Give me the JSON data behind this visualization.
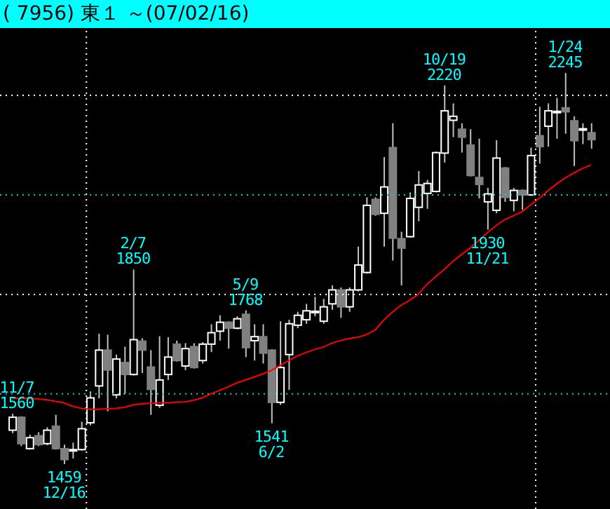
{
  "chart_data": {
    "type": "candlestick",
    "title": "( 7956) 東１ ～(07/02/16)",
    "categories": [
      null,
      null,
      null,
      null,
      null,
      null,
      null,
      null,
      null,
      null,
      null,
      null,
      null,
      null,
      null,
      null,
      null,
      null,
      null,
      null,
      null,
      null,
      null,
      null,
      null,
      null,
      null,
      null,
      null,
      null,
      null,
      null,
      null,
      null,
      null,
      null,
      null,
      null,
      null,
      null,
      null,
      null,
      null,
      null,
      null,
      null,
      null,
      null,
      null,
      null,
      null,
      null,
      null,
      null,
      null,
      null,
      null,
      null,
      null,
      null,
      null,
      null,
      null,
      null,
      null,
      null,
      null,
      null
    ],
    "ohlc": [
      [
        1527,
        1560,
        1521,
        1553
      ],
      [
        1553,
        1555,
        1495,
        1500
      ],
      [
        1490,
        1518,
        1488,
        1512
      ],
      [
        1516,
        1523,
        1495,
        1498
      ],
      [
        1500,
        1533,
        1497,
        1527
      ],
      [
        1535,
        1558,
        1488,
        1490
      ],
      [
        1490,
        1498,
        1459,
        1468
      ],
      [
        1486,
        1502,
        1470,
        1488
      ],
      [
        1488,
        1544,
        1486,
        1530
      ],
      [
        1542,
        1605,
        1537,
        1592
      ],
      [
        1616,
        1721,
        1591,
        1688
      ],
      [
        1688,
        1719,
        1565,
        1648
      ],
      [
        1598,
        1679,
        1591,
        1670
      ],
      [
        1663,
        1695,
        1600,
        1639
      ],
      [
        1639,
        1850,
        1637,
        1709
      ],
      [
        1706,
        1712,
        1642,
        1688
      ],
      [
        1654,
        1688,
        1558,
        1609
      ],
      [
        1577,
        1716,
        1572,
        1628
      ],
      [
        1639,
        1714,
        1628,
        1674
      ],
      [
        1700,
        1707,
        1665,
        1667
      ],
      [
        1656,
        1702,
        1648,
        1691
      ],
      [
        1695,
        1702,
        1651,
        1653
      ],
      [
        1667,
        1704,
        1661,
        1700
      ],
      [
        1700,
        1740,
        1684,
        1723
      ],
      [
        1726,
        1758,
        1707,
        1744
      ],
      [
        1744,
        1746,
        1691,
        1732
      ],
      [
        1732,
        1756,
        1730,
        1751
      ],
      [
        1760,
        1768,
        1674,
        1693
      ],
      [
        1707,
        1740,
        1667,
        1715
      ],
      [
        1715,
        1740,
        1661,
        1682
      ],
      [
        1688,
        1690,
        1541,
        1583
      ],
      [
        1583,
        1746,
        1578,
        1653
      ],
      [
        1679,
        1749,
        1608,
        1741
      ],
      [
        1738,
        1765,
        1732,
        1758
      ],
      [
        1749,
        1781,
        1741,
        1767
      ],
      [
        1764,
        1795,
        1756,
        1766
      ],
      [
        1746,
        1791,
        1741,
        1775
      ],
      [
        1781,
        1818,
        1769,
        1809
      ],
      [
        1809,
        1814,
        1753,
        1775
      ],
      [
        1775,
        1814,
        1765,
        1809
      ],
      [
        1809,
        1896,
        1806,
        1859
      ],
      [
        1844,
        1995,
        1842,
        1979
      ],
      [
        1991,
        1995,
        1958,
        1961
      ],
      [
        1963,
        2076,
        1896,
        2016
      ],
      [
        2095,
        2144,
        1868,
        1913
      ],
      [
        1912,
        1926,
        1818,
        1893
      ],
      [
        1916,
        2005,
        1914,
        1993
      ],
      [
        1975,
        2048,
        1947,
        2020
      ],
      [
        2003,
        2030,
        1972,
        2023
      ],
      [
        2007,
        2087,
        2005,
        2085
      ],
      [
        2084,
        2220,
        2065,
        2169
      ],
      [
        2150,
        2184,
        2116,
        2158
      ],
      [
        2132,
        2144,
        2085,
        2116
      ],
      [
        2100,
        2132,
        2037,
        2039
      ],
      [
        2035,
        2113,
        1993,
        2021
      ],
      [
        1986,
        2014,
        1930,
        2002
      ],
      [
        1969,
        2110,
        1963,
        2074
      ],
      [
        2054,
        2056,
        1986,
        1995
      ],
      [
        1989,
        2014,
        1967,
        2009
      ],
      [
        2009,
        2011,
        1970,
        2000
      ],
      [
        2000,
        2095,
        1998,
        2079
      ],
      [
        2119,
        2177,
        2063,
        2097
      ],
      [
        2138,
        2184,
        2097,
        2169
      ],
      [
        2166,
        2195,
        2113,
        2168
      ],
      [
        2175,
        2245,
        2123,
        2167
      ],
      [
        2149,
        2158,
        2058,
        2109
      ],
      [
        2131,
        2144,
        2102,
        2133
      ],
      [
        2125,
        2144,
        2093,
        2111
      ]
    ],
    "series": [
      {
        "type": "line",
        "color": "#ff0000",
        "values": [
          1591,
          1591,
          1591,
          1590,
          1588,
          1585,
          1582,
          1575,
          1571,
          1569,
          1569,
          1570,
          1571,
          1573,
          1578,
          1580,
          1581,
          1582,
          1582,
          1583,
          1584,
          1587,
          1592,
          1600,
          1607,
          1614,
          1622,
          1628,
          1634,
          1640,
          1647,
          1657,
          1667,
          1676,
          1683,
          1689,
          1694,
          1702,
          1707,
          1711,
          1714,
          1719,
          1728,
          1748,
          1764,
          1778,
          1788,
          1800,
          1820,
          1835,
          1850,
          1866,
          1880,
          1893,
          1908,
          1924,
          1938,
          1950,
          1958,
          1966,
          1980,
          1993,
          2008,
          2022,
          2034,
          2044,
          2053,
          2060
        ]
      }
    ],
    "yticks": [
      {
        "value": 1600,
        "label": null
      },
      {
        "value": 1800,
        "label": null
      },
      {
        "value": 2000,
        "label": null
      },
      {
        "value": 2200,
        "label": null
      }
    ],
    "grid": "y",
    "tick_labels": false,
    "annotations": [
      {
        "text": "11/7\n1560",
        "y": 1560
      },
      {
        "text": "1459\n12/16",
        "y": 1459
      },
      {
        "text": "2/7\n1850",
        "y": 1850
      },
      {
        "text": "5/9\n1768",
        "y": 1768
      },
      {
        "text": "1541\n6/2",
        "y": 1541
      },
      {
        "text": "10/19\n2220",
        "y": 2220
      },
      {
        "text": "1930\n11/21",
        "y": 1930
      },
      {
        "text": "1/24\n2245",
        "y": 2245
      }
    ]
  }
}
